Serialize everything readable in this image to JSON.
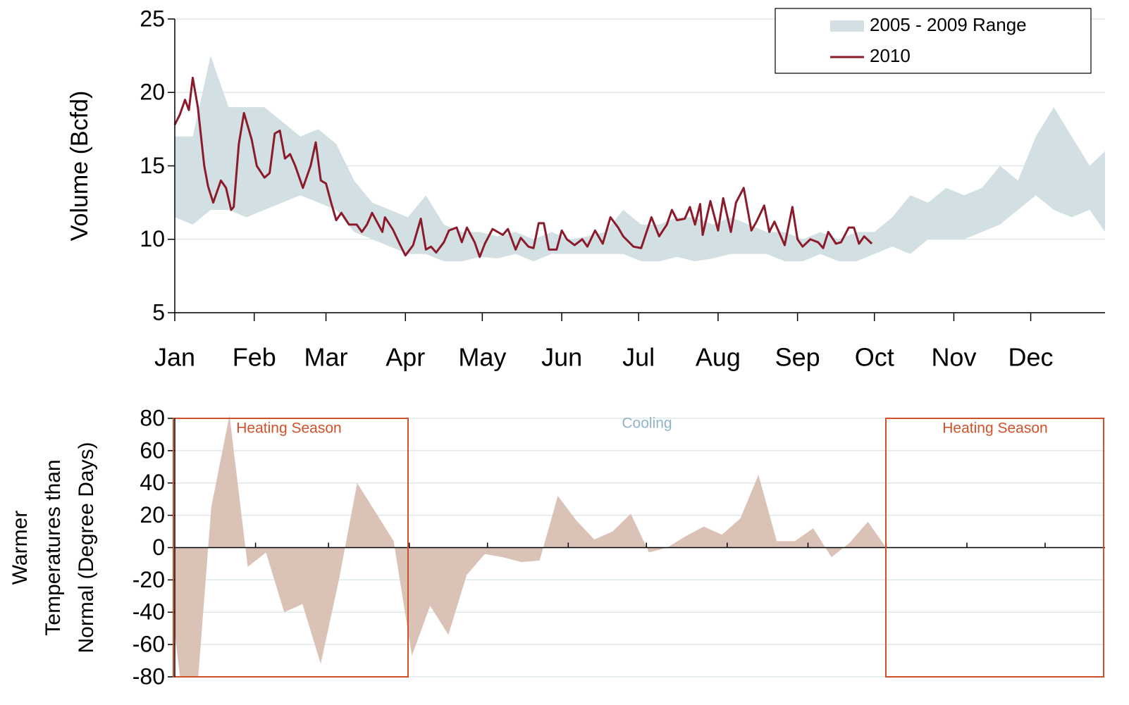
{
  "chart_data": [
    {
      "type": "line",
      "ylabel": "Volume (Bcfd)",
      "xlim": [
        0,
        363
      ],
      "ylim": [
        5,
        25
      ],
      "yticks": [
        5,
        10,
        15,
        20,
        25
      ],
      "grid": true,
      "legend": "upper right",
      "xticks": [
        {
          "value": 0,
          "label": "Jan"
        },
        {
          "value": 31,
          "label": "Feb"
        },
        {
          "value": 59,
          "label": "Mar"
        },
        {
          "value": 90,
          "label": "Apr"
        },
        {
          "value": 120,
          "label": "May"
        },
        {
          "value": 151,
          "label": "Jun"
        },
        {
          "value": 181,
          "label": "Jul"
        },
        {
          "value": 212,
          "label": "Aug"
        },
        {
          "value": 243,
          "label": "Sep"
        },
        {
          "value": 273,
          "label": "Oct"
        },
        {
          "value": 304,
          "label": "Nov"
        },
        {
          "value": 334,
          "label": "Dec"
        }
      ],
      "series": [
        {
          "name": "2005 - 2009 Range",
          "color": "#d3e0e3",
          "x": [
            0,
            7,
            14,
            21,
            28,
            35,
            42,
            49,
            56,
            63,
            70,
            77,
            84,
            91,
            98,
            105,
            112,
            119,
            126,
            133,
            140,
            147,
            154,
            161,
            168,
            175,
            182,
            189,
            196,
            203,
            210,
            217,
            224,
            231,
            238,
            245,
            252,
            259,
            266,
            273,
            280,
            287,
            294,
            301,
            308,
            315,
            322,
            329,
            336,
            343,
            350,
            357,
            363
          ],
          "low": [
            11.5,
            11,
            12,
            12,
            11.5,
            12,
            12.5,
            13,
            12.5,
            12,
            10.5,
            10,
            9.5,
            9,
            9,
            8.5,
            8.5,
            8.8,
            8.7,
            9,
            8.5,
            9,
            9,
            9,
            9,
            9,
            8.5,
            8.5,
            8.8,
            8.5,
            8.7,
            9,
            9,
            9,
            8.5,
            8.5,
            9,
            8.5,
            8.5,
            9,
            9.5,
            9,
            10,
            10,
            10,
            10.5,
            11,
            12,
            13,
            12,
            11.5,
            12,
            10.5
          ],
          "high": [
            17,
            17,
            22.5,
            19,
            19,
            19,
            18,
            17,
            17.5,
            16.5,
            14,
            12.5,
            12,
            11.5,
            13,
            11,
            10.5,
            10.5,
            10.2,
            10.5,
            10,
            10.5,
            10,
            10.2,
            10.5,
            12,
            11,
            11,
            11.5,
            11.5,
            11,
            11.5,
            11,
            10.5,
            10.5,
            10,
            10.5,
            10,
            10.5,
            10.5,
            11.5,
            13,
            12.5,
            13.5,
            13,
            13.5,
            15,
            14,
            17,
            19,
            17,
            15,
            16
          ]
        },
        {
          "name": "2010",
          "color": "#8b1a2b",
          "x": [
            0,
            2,
            4,
            5.5,
            7,
            9,
            11.5,
            13,
            15,
            18,
            20,
            22,
            23,
            25,
            27,
            30,
            32,
            35,
            37,
            39,
            41,
            43,
            45,
            47,
            50,
            53,
            55,
            57,
            59,
            61,
            63,
            65,
            68,
            71,
            73,
            75,
            77,
            81,
            82,
            85,
            88,
            90,
            93,
            96,
            98,
            100,
            102,
            105,
            107,
            110,
            112,
            114,
            117,
            119,
            121,
            124,
            128,
            130,
            133,
            135,
            138,
            140,
            142,
            144,
            146,
            149,
            151,
            153,
            156,
            159,
            161,
            164,
            167,
            170,
            173,
            175,
            179,
            182,
            186,
            189,
            192,
            194,
            196,
            199,
            201,
            203,
            205,
            206,
            209,
            212,
            214,
            217,
            219,
            222,
            225,
            227,
            230,
            232,
            234,
            238,
            241,
            243,
            245,
            248,
            251,
            253,
            255,
            258,
            260,
            263,
            265,
            267,
            269,
            272
          ],
          "values": [
            17.8,
            18.5,
            19.5,
            18.8,
            21,
            19,
            15,
            13.6,
            12.5,
            14,
            13.5,
            12,
            12.2,
            16.5,
            18.6,
            16.8,
            15,
            14.2,
            14.5,
            17.2,
            17.4,
            15.5,
            15.8,
            15,
            13.5,
            15,
            16.6,
            14,
            13.8,
            12.5,
            11.3,
            11.8,
            11,
            11,
            10.5,
            11,
            11.8,
            10.5,
            11.5,
            10.7,
            9.6,
            8.9,
            9.6,
            11.4,
            9.3,
            9.5,
            9.1,
            9.8,
            10.6,
            10.8,
            9.8,
            10.8,
            9.8,
            8.8,
            9.7,
            10.7,
            10.3,
            10.7,
            9.3,
            10.1,
            9.5,
            9.4,
            11.1,
            11.1,
            9.3,
            9.3,
            10.6,
            10,
            9.6,
            10,
            9.5,
            10.6,
            9.7,
            11.5,
            10.8,
            10.2,
            9.5,
            9.4,
            11.5,
            10.2,
            11,
            12,
            11.3,
            11.4,
            12.2,
            11,
            12.4,
            10.3,
            12.6,
            10.6,
            12.8,
            10.5,
            12.5,
            13.5,
            10.6,
            11.2,
            12.3,
            10.5,
            11.2,
            9.6,
            12.2,
            10,
            9.5,
            10,
            9.8,
            9.4,
            10.5,
            9.7,
            9.8,
            10.8,
            10.8,
            9.7,
            10.2,
            9.7
          ]
        }
      ]
    },
    {
      "type": "area",
      "ylabel": [
        "Warmer",
        "Temperatures than",
        "Normal (Degree Days)"
      ],
      "xlim": [
        0,
        357
      ],
      "ylim": [
        -80,
        80
      ],
      "yticks": [
        -80,
        -60,
        -40,
        -20,
        0,
        20,
        40,
        60,
        80
      ],
      "grid": true,
      "xticks": [
        31,
        59,
        90,
        120,
        151,
        181,
        212,
        243,
        273,
        304,
        334
      ],
      "color": "#dac3b6",
      "x": [
        0,
        2,
        9,
        14,
        21,
        28,
        35,
        42,
        49,
        56,
        63,
        70,
        77,
        84,
        91,
        98,
        105,
        112,
        119,
        126,
        133,
        140,
        147,
        154,
        161,
        168,
        175,
        182,
        189,
        196,
        203,
        210,
        217,
        224,
        231,
        238,
        245,
        252,
        259,
        266,
        273
      ],
      "values": [
        -53,
        -80,
        -80,
        25,
        82,
        -12,
        -3,
        -40,
        -35,
        -72,
        -20,
        40,
        22,
        4,
        -67,
        -36,
        -54,
        -17,
        -4,
        -6,
        -9,
        -8,
        32,
        17,
        5,
        10,
        21,
        -3,
        0,
        7,
        13,
        8,
        18,
        45,
        4,
        4,
        12,
        -6,
        3,
        16,
        0
      ],
      "annotations": [
        {
          "text": "Heating Season",
          "color": "#d0522a"
        },
        {
          "text": "Cooling",
          "color": "#8fb4c8"
        },
        {
          "text": "Heating Season",
          "color": "#d0522a"
        }
      ]
    }
  ]
}
